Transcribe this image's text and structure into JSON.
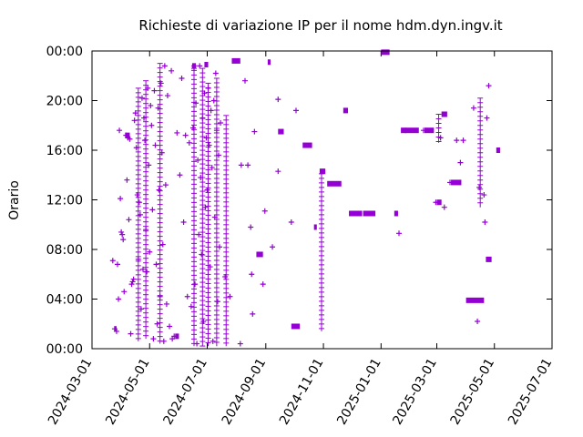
{
  "chart_data": {
    "type": "scatter",
    "title": "Richieste di variazione IP per il nome hdm.dyn.ingv.it",
    "xlabel": "",
    "ylabel": "Orario",
    "color": "#9400d3",
    "marker": "plus",
    "xlim": [
      "2024-03-01",
      "2025-07-01"
    ],
    "ylim": [
      0,
      24
    ],
    "xticks": [
      "2024-03-01",
      "2024-05-01",
      "2024-07-01",
      "2024-09-01",
      "2024-11-01",
      "2025-01-01",
      "2025-03-01",
      "2025-05-01",
      "2025-07-01"
    ],
    "yticks": [
      "00:00",
      "04:00",
      "08:00",
      "12:00",
      "16:00",
      "20:00",
      "00:00"
    ],
    "grid": false,
    "series": [
      {
        "points": [
          [
            "2024-03-23",
            7.1
          ],
          [
            "2024-03-25",
            1.6
          ],
          [
            "2024-03-27",
            1.4
          ],
          [
            "2024-03-28",
            6.8
          ],
          [
            "2024-03-29",
            4.0
          ],
          [
            "2024-03-30",
            17.6
          ],
          [
            "2024-03-31",
            12.1
          ],
          [
            "2024-04-01",
            9.4
          ],
          [
            "2024-04-02",
            9.2
          ],
          [
            "2024-04-03",
            8.8
          ],
          [
            "2024-04-04",
            4.6
          ],
          [
            "2024-04-06",
            17.2
          ],
          [
            "2024-04-07",
            13.6
          ],
          [
            "2024-04-08",
            17.0
          ],
          [
            "2024-04-09",
            10.4
          ],
          [
            "2024-04-10",
            16.9
          ],
          [
            "2024-04-11",
            1.2
          ],
          [
            "2024-04-12",
            5.2
          ],
          [
            "2024-04-13",
            5.4
          ],
          [
            "2024-04-14",
            5.6
          ],
          [
            "2024-04-15",
            18.4
          ],
          [
            "2024-04-16",
            19.0
          ],
          [
            "2024-04-17",
            16.2
          ],
          [
            "2024-04-18",
            12.4
          ],
          [
            "2024-04-19",
            7.2
          ],
          [
            "2024-04-20",
            11.8
          ],
          [
            "2024-04-21",
            10.8
          ],
          [
            "2024-04-22",
            3.2
          ],
          [
            "2024-04-23",
            20.2
          ],
          [
            "2024-04-24",
            6.4
          ],
          [
            "2024-04-25",
            18.6
          ],
          [
            "2024-04-26",
            16.8
          ],
          [
            "2024-04-27",
            9.6
          ],
          [
            "2024-04-28",
            6.2
          ],
          [
            "2024-04-29",
            21.0
          ],
          [
            "2024-04-30",
            14.8
          ],
          [
            "2024-05-01",
            7.8
          ],
          [
            "2024-05-02",
            19.6
          ],
          [
            "2024-05-03",
            18.0
          ],
          [
            "2024-05-04",
            11.2
          ],
          [
            "2024-05-05",
            0.8
          ],
          [
            "2024-05-06",
            20.8
          ],
          [
            "2024-05-07",
            16.4
          ],
          [
            "2024-05-08",
            6.8
          ],
          [
            "2024-05-09",
            2.0
          ],
          [
            "2024-05-10",
            19.4
          ],
          [
            "2024-05-11",
            12.8
          ],
          [
            "2024-05-12",
            4.2
          ],
          [
            "2024-05-13",
            21.4
          ],
          [
            "2024-05-14",
            15.8
          ],
          [
            "2024-05-15",
            8.4
          ],
          [
            "2024-05-16",
            0.6
          ],
          [
            "2024-05-17",
            22.8
          ],
          [
            "2024-05-18",
            13.2
          ],
          [
            "2024-05-19",
            3.6
          ],
          [
            "2024-05-20",
            20.4
          ],
          [
            "2024-05-22",
            1.8
          ],
          [
            "2024-05-24",
            22.4
          ],
          [
            "2024-05-25",
            0.8
          ],
          [
            "2024-05-27",
            1.0
          ],
          [
            "2024-05-30",
            17.4
          ],
          [
            "2024-06-02",
            14.0
          ],
          [
            "2024-06-04",
            21.8
          ],
          [
            "2024-06-06",
            10.2
          ],
          [
            "2024-06-08",
            17.2
          ],
          [
            "2024-06-10",
            4.2
          ],
          [
            "2024-06-12",
            16.6
          ],
          [
            "2024-06-14",
            3.4
          ],
          [
            "2024-06-16",
            17.8
          ],
          [
            "2024-06-17",
            22.6
          ],
          [
            "2024-06-18",
            5.2
          ],
          [
            "2024-06-19",
            19.8
          ],
          [
            "2024-06-20",
            0.4
          ],
          [
            "2024-06-21",
            15.2
          ],
          [
            "2024-06-22",
            9.2
          ],
          [
            "2024-06-23",
            22.8
          ],
          [
            "2024-06-24",
            13.8
          ],
          [
            "2024-06-25",
            7.6
          ],
          [
            "2024-06-26",
            18.6
          ],
          [
            "2024-06-27",
            2.2
          ],
          [
            "2024-06-28",
            20.6
          ],
          [
            "2024-06-29",
            11.4
          ],
          [
            "2024-06-30",
            17.0
          ],
          [
            "2024-07-01",
            12.8
          ],
          [
            "2024-07-02",
            21.0
          ],
          [
            "2024-07-03",
            16.4
          ],
          [
            "2024-07-04",
            6.6
          ],
          [
            "2024-07-05",
            19.2
          ],
          [
            "2024-07-06",
            14.6
          ],
          [
            "2024-07-07",
            0.6
          ],
          [
            "2024-07-08",
            20.0
          ],
          [
            "2024-07-09",
            10.6
          ],
          [
            "2024-07-10",
            22.2
          ],
          [
            "2024-07-11",
            17.6
          ],
          [
            "2024-07-12",
            3.8
          ],
          [
            "2024-07-13",
            15.6
          ],
          [
            "2024-07-14",
            8.2
          ],
          [
            "2024-07-15",
            18.2
          ],
          [
            "2024-07-20",
            5.8
          ],
          [
            "2024-07-25",
            4.2
          ],
          [
            "2024-08-05",
            0.4
          ],
          [
            "2024-08-06",
            14.8
          ],
          [
            "2024-08-10",
            21.6
          ],
          [
            "2024-08-13",
            14.8
          ],
          [
            "2024-08-16",
            9.8
          ],
          [
            "2024-08-17",
            6.0
          ],
          [
            "2024-08-18",
            2.8
          ],
          [
            "2024-08-20",
            17.5
          ],
          [
            "2024-08-29",
            5.2
          ],
          [
            "2024-08-31",
            11.1
          ],
          [
            "2024-09-08",
            8.2
          ],
          [
            "2024-09-14",
            20.1
          ],
          [
            "2024-09-14",
            14.3
          ],
          [
            "2024-09-28",
            10.2
          ],
          [
            "2024-10-03",
            19.2
          ],
          [
            "2025-01-20",
            9.3
          ],
          [
            "2025-01-27",
            17.6
          ],
          [
            "2025-02-15",
            17.6
          ],
          [
            "2025-02-28",
            11.8
          ],
          [
            "2025-03-05",
            17.0
          ],
          [
            "2025-03-09",
            11.4
          ],
          [
            "2025-03-15",
            13.4
          ],
          [
            "2025-03-22",
            16.8
          ],
          [
            "2025-03-26",
            15.0
          ],
          [
            "2025-03-29",
            16.8
          ],
          [
            "2025-04-09",
            19.4
          ],
          [
            "2025-04-13",
            2.2
          ],
          [
            "2025-04-15",
            13.0
          ],
          [
            "2025-04-20",
            12.4
          ],
          [
            "2025-04-25",
            21.2
          ],
          [
            "2025-04-21",
            10.2
          ],
          [
            "2025-04-23",
            18.6
          ]
        ],
        "segments": [
          [
            "2024-03-25",
            "2024-03-27",
            1.6
          ],
          [
            "2024-04-05",
            "2024-04-10",
            17.2
          ],
          [
            "2024-05-28",
            "2024-06-01",
            1.0
          ],
          [
            "2024-06-15",
            "2024-06-19",
            22.8
          ],
          [
            "2024-06-28",
            "2024-07-02",
            22.9
          ],
          [
            "2024-07-27",
            "2024-08-05",
            23.2
          ],
          [
            "2024-08-22",
            "2024-08-29",
            7.6
          ],
          [
            "2024-09-03",
            "2024-09-06",
            23.1
          ],
          [
            "2024-09-14",
            "2024-09-20",
            17.5
          ],
          [
            "2024-09-28",
            "2024-10-07",
            1.8
          ],
          [
            "2024-10-10",
            "2024-10-20",
            16.4
          ],
          [
            "2024-10-22",
            "2024-10-25",
            9.8
          ],
          [
            "2024-10-28",
            "2024-11-03",
            14.3
          ],
          [
            "2024-11-05",
            "2024-11-20",
            13.3
          ],
          [
            "2024-11-22",
            "2024-11-27",
            19.2
          ],
          [
            "2024-11-28",
            "2024-12-12",
            10.9
          ],
          [
            "2024-12-13",
            "2024-12-26",
            10.9
          ],
          [
            "2025-01-01",
            "2025-01-10",
            23.9
          ],
          [
            "2025-01-15",
            "2025-01-19",
            10.9
          ],
          [
            "2025-01-22",
            "2025-02-10",
            17.6
          ],
          [
            "2025-02-16",
            "2025-02-26",
            17.6
          ],
          [
            "2025-03-01",
            "2025-03-06",
            11.8
          ],
          [
            "2025-03-06",
            "2025-03-12",
            18.9
          ],
          [
            "2025-03-16",
            "2025-03-27",
            13.4
          ],
          [
            "2025-04-01",
            "2025-04-20",
            3.9
          ],
          [
            "2025-04-22",
            "2025-04-28",
            7.2
          ],
          [
            "2025-05-03",
            "2025-05-07",
            16.0
          ]
        ],
        "stacks": [
          [
            "2024-04-19",
            0.6,
            21.0
          ],
          [
            "2024-04-27",
            0.8,
            21.6
          ],
          [
            "2024-05-12",
            0.4,
            23.0
          ],
          [
            "2024-06-17",
            0.2,
            22.8
          ],
          [
            "2024-06-26",
            0.2,
            22.6
          ],
          [
            "2024-07-02",
            0.2,
            21.4
          ],
          [
            "2024-07-11",
            0.2,
            21.8
          ],
          [
            "2024-07-21",
            0.2,
            18.8
          ],
          [
            "2024-10-30",
            1.4,
            14.1
          ],
          [
            "2025-03-03",
            16.6,
            18.9
          ],
          [
            "2025-04-16",
            11.4,
            20.2
          ]
        ]
      }
    ]
  }
}
